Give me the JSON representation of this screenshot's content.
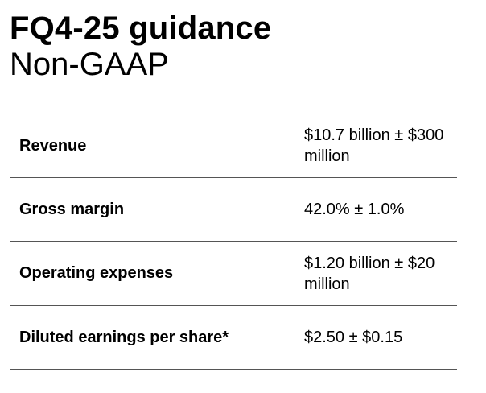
{
  "header": {
    "title": "FQ4-25 guidance",
    "subtitle": "Non-GAAP"
  },
  "guidance": {
    "rows": [
      {
        "metric": "Revenue",
        "value": "$10.7 billion ± $300 million"
      },
      {
        "metric": "Gross margin",
        "value": "42.0% ± 1.0%"
      },
      {
        "metric": "Operating expenses",
        "value": "$1.20 billion ± $20 million"
      },
      {
        "metric": "Diluted earnings per share*",
        "value": "$2.50 ± $0.15"
      }
    ]
  },
  "colors": {
    "text": "#000000",
    "divider": "#555555",
    "background": "#ffffff"
  }
}
